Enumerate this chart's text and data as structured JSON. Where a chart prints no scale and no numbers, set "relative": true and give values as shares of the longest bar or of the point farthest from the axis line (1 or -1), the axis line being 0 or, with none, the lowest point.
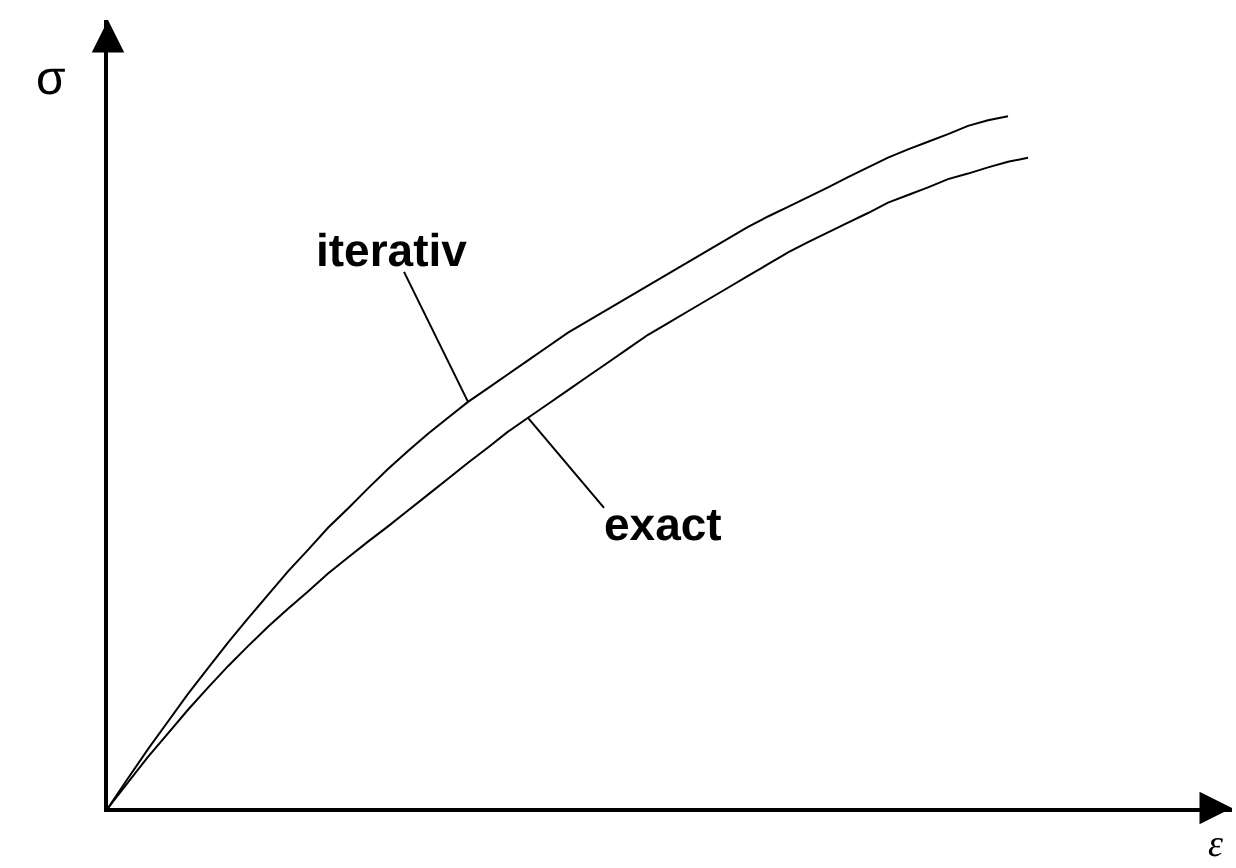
{
  "chart_data": {
    "type": "line",
    "relative": true,
    "xlabel": "ε",
    "ylabel": "σ",
    "categories": [
      null,
      null,
      null,
      null,
      null,
      null,
      null,
      null,
      null,
      null,
      null,
      null,
      null,
      null,
      null,
      null,
      null,
      null,
      null,
      null,
      null,
      null,
      null,
      null,
      null,
      null,
      null,
      null,
      null,
      null,
      null,
      null,
      null,
      null,
      null,
      null,
      null,
      null,
      null,
      null,
      null,
      null,
      null,
      null,
      null,
      null,
      null
    ],
    "series": [
      {
        "name": "iterativ",
        "color": "#000000",
        "values": [
          0,
          0.043,
          0.085,
          0.125,
          0.165,
          0.202,
          0.239,
          0.274,
          0.308,
          0.342,
          0.373,
          0.405,
          0.433,
          0.462,
          0.49,
          0.516,
          0.541,
          0.564,
          0.587,
          0.607,
          0.627,
          0.647,
          0.667,
          0.687,
          0.704,
          0.721,
          0.738,
          0.755,
          0.772,
          0.789,
          0.806,
          0.823,
          0.84,
          0.855,
          0.869,
          0.883,
          0.897,
          0.912,
          0.926,
          0.94,
          0.952,
          0.963,
          0.974,
          0.986,
          0.994,
          1,
          null
        ]
      },
      {
        "name": "exact",
        "color": "#000000",
        "values": [
          0,
          0.037,
          0.074,
          0.108,
          0.142,
          0.174,
          0.205,
          0.234,
          0.262,
          0.288,
          0.313,
          0.339,
          0.362,
          0.385,
          0.407,
          0.43,
          0.453,
          0.476,
          0.499,
          0.521,
          0.544,
          0.564,
          0.584,
          0.604,
          0.624,
          0.644,
          0.664,
          0.684,
          0.701,
          0.718,
          0.735,
          0.752,
          0.769,
          0.786,
          0.803,
          0.818,
          0.832,
          0.846,
          0.86,
          0.875,
          0.886,
          0.897,
          0.909,
          0.917,
          0.926,
          0.934,
          0.94
        ]
      }
    ]
  }
}
